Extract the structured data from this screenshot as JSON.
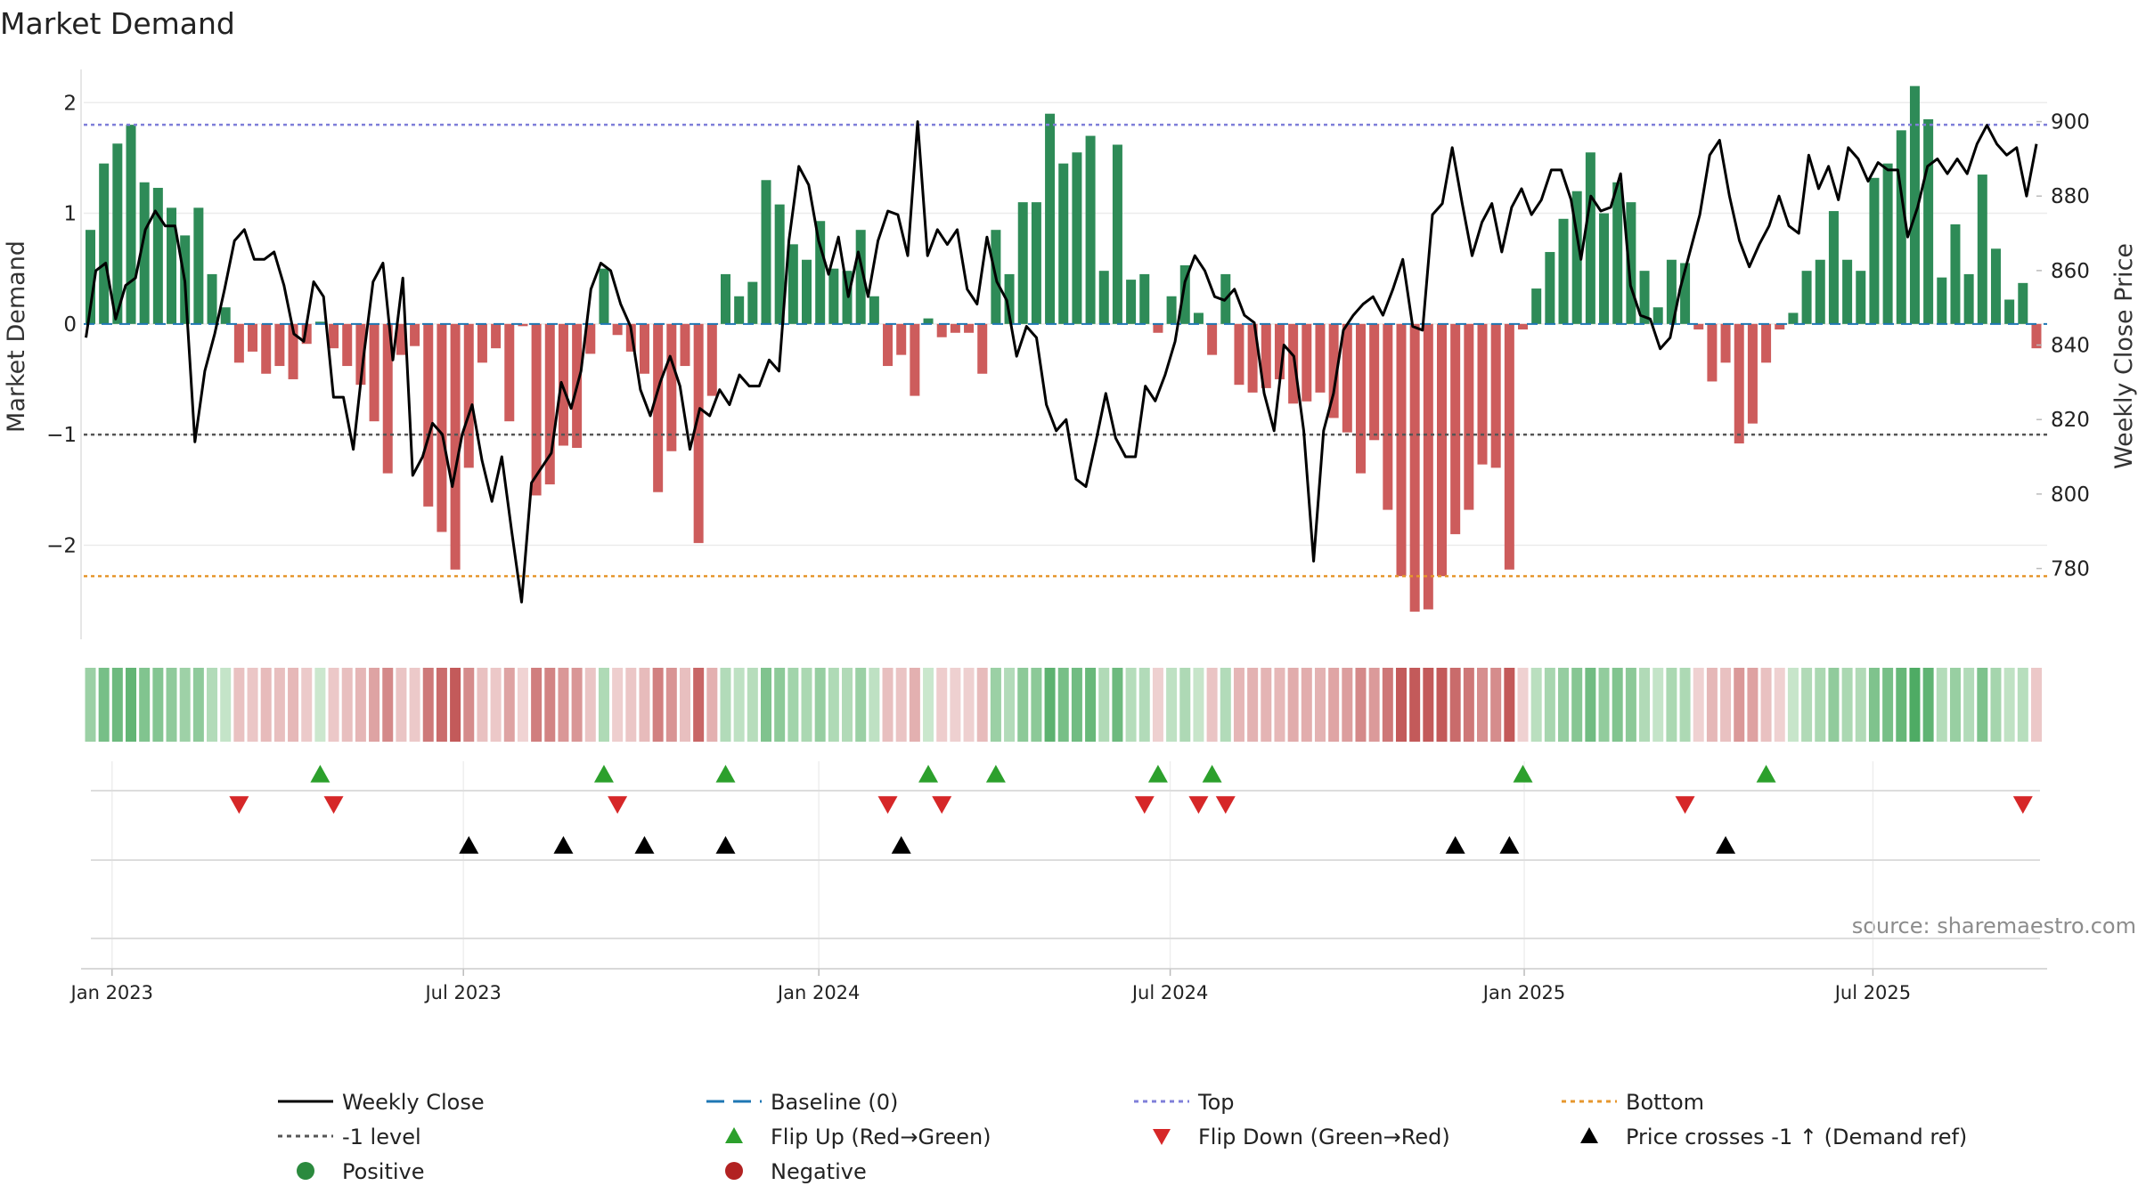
{
  "chart_data": {
    "type": "bar",
    "title": "Market Demand",
    "ylabel_left": "Market Demand",
    "ylabel_right": "Weekly Close Price",
    "ylim_left": [
      -2.85,
      2.3
    ],
    "ylim_right": [
      761,
      914
    ],
    "left_ticks": [
      "2",
      "1",
      "0",
      "−1",
      "−2"
    ],
    "left_tick_values": [
      2,
      1,
      0,
      -1,
      -2
    ],
    "right_ticks": [
      "900",
      "880",
      "860",
      "840",
      "820",
      "800",
      "780"
    ],
    "right_tick_values": [
      900,
      880,
      860,
      840,
      820,
      800,
      780
    ],
    "x_ticks": [
      "Jan 2023",
      "Jul 2023",
      "Jan 2024",
      "Jul 2024",
      "Jan 2025",
      "Jul 2025"
    ],
    "x_tick_weeks": [
      1.6,
      27.6,
      53.9,
      79.9,
      106.1,
      131.9
    ],
    "reference_lines": {
      "top": 1.8,
      "bottom": -2.28,
      "minus_one": -1,
      "baseline": 0
    },
    "market_demand": [
      0.85,
      1.45,
      1.63,
      1.8,
      1.28,
      1.23,
      1.05,
      0.8,
      1.05,
      0.45,
      0.15,
      -0.35,
      -0.25,
      -0.45,
      -0.38,
      -0.5,
      -0.18,
      0.02,
      -0.22,
      -0.38,
      -0.55,
      -0.88,
      -1.35,
      -0.28,
      -0.2,
      -1.65,
      -1.88,
      -2.22,
      -1.3,
      -0.35,
      -0.22,
      -0.88,
      -0.02,
      -1.55,
      -1.45,
      -1.1,
      -1.12,
      -0.27,
      0.5,
      -0.1,
      -0.25,
      -0.45,
      -1.52,
      -1.15,
      -0.38,
      -1.98,
      -0.65,
      0.45,
      0.25,
      0.38,
      1.3,
      1.08,
      0.72,
      0.58,
      0.93,
      0.5,
      0.48,
      0.85,
      0.25,
      -0.38,
      -0.28,
      -0.65,
      0.05,
      -0.12,
      -0.08,
      -0.08,
      -0.45,
      0.85,
      0.45,
      1.1,
      1.1,
      1.9,
      1.45,
      1.55,
      1.7,
      0.48,
      1.62,
      0.4,
      0.45,
      -0.08,
      0.25,
      0.53,
      0.1,
      -0.28,
      0.45,
      -0.55,
      -0.62,
      -0.58,
      -0.5,
      -0.72,
      -0.7,
      -0.62,
      -0.85,
      -0.98,
      -1.35,
      -1.05,
      -1.68,
      -2.28,
      -2.6,
      -2.58,
      -2.28,
      -1.9,
      -1.68,
      -1.27,
      -1.3,
      -2.22,
      -0.05,
      0.32,
      0.65,
      0.95,
      1.2,
      1.55,
      1.0,
      1.28,
      1.1,
      0.48,
      0.15,
      0.58,
      0.55,
      -0.05,
      -0.52,
      -0.35,
      -1.08,
      -0.9,
      -0.35,
      -0.05,
      0.1,
      0.48,
      0.58,
      1.02,
      0.58,
      0.48,
      1.32,
      1.45,
      1.75,
      2.15,
      1.85,
      0.42,
      0.9,
      0.45,
      1.35,
      0.68,
      0.22,
      0.37,
      -0.22
    ],
    "weekly_close": [
      842,
      860,
      862,
      847,
      856,
      858,
      871,
      876,
      872,
      872,
      857,
      814,
      833,
      843,
      855,
      868,
      871,
      863,
      863,
      865,
      856,
      843,
      841,
      857,
      853,
      826,
      826,
      812,
      836,
      857,
      862,
      836,
      858,
      805,
      810,
      819,
      816,
      802,
      816,
      824,
      809,
      798,
      810,
      790,
      771,
      803,
      807,
      811,
      830,
      823,
      833,
      855,
      862,
      860,
      851,
      845,
      828,
      821,
      830,
      837,
      829,
      812,
      823,
      821,
      828,
      824,
      832,
      829,
      829,
      836,
      833,
      868,
      888,
      883,
      868,
      859,
      869,
      853,
      865,
      853,
      868,
      876,
      875,
      864,
      900,
      864,
      871,
      867,
      871,
      855,
      851,
      869,
      857,
      852,
      837,
      845,
      842,
      824,
      817,
      820,
      804,
      802,
      814,
      827,
      815,
      810,
      810,
      829,
      825,
      832,
      841,
      857,
      864,
      860,
      853,
      852,
      855,
      848,
      846,
      827,
      817,
      840,
      837,
      817,
      782,
      817,
      827,
      844,
      848,
      851,
      853,
      848,
      855,
      863,
      845,
      844,
      875,
      878,
      893,
      878,
      864,
      873,
      878,
      865,
      877,
      882,
      875,
      879,
      887,
      887,
      879,
      863,
      880,
      876,
      877,
      886,
      856,
      848,
      847,
      839,
      842,
      855,
      865,
      875,
      891,
      895,
      880,
      868,
      861,
      867,
      872,
      880,
      872,
      870,
      891,
      882,
      888,
      879,
      893,
      890,
      884,
      889,
      887,
      887,
      869,
      877,
      888,
      890,
      886,
      890,
      886,
      894,
      899,
      894,
      891,
      893,
      880,
      894
    ],
    "flip_up_weeks": [
      17,
      38,
      47,
      62,
      67,
      79,
      83,
      106,
      124
    ],
    "flip_down_weeks": [
      11,
      18,
      39,
      59,
      63,
      78,
      82,
      84,
      118,
      143
    ],
    "price_cross_weeks": [
      28,
      35,
      41,
      47,
      60,
      101,
      105,
      121
    ],
    "watermark": "source: sharemaestro.com",
    "legend": [
      {
        "label": "Weekly Close",
        "kind": "line",
        "color": "#000000"
      },
      {
        "label": "Baseline (0)",
        "kind": "dash",
        "color": "#1f77b4"
      },
      {
        "label": "Top",
        "kind": "dot",
        "color": "#7f7fd9"
      },
      {
        "label": "Bottom",
        "kind": "dot",
        "color": "#e6972e"
      },
      {
        "label": "-1 level",
        "kind": "dot",
        "color": "#555555"
      },
      {
        "label": "Flip Up (Red→Green)",
        "kind": "tri-up",
        "color": "#2ca02c"
      },
      {
        "label": "Flip Down (Green→Red)",
        "kind": "tri-down",
        "color": "#d62728"
      },
      {
        "label": "Price crosses -1 ↑ (Demand ref)",
        "kind": "tri-up",
        "color": "#000000"
      },
      {
        "label": "Positive",
        "kind": "circle",
        "color": "#2b8a3e"
      },
      {
        "label": "Negative",
        "kind": "circle",
        "color": "#b22222"
      }
    ],
    "colors": {
      "positive_bar": "#2e8b57",
      "negative_bar": "#cd5c5c",
      "price_line": "#000000",
      "top_line": "#7f7fd9",
      "bottom_line": "#e6972e",
      "minus_one_line": "#555555",
      "baseline": "#1f77b4",
      "flip_up": "#2ca02c",
      "flip_down": "#d62728",
      "price_cross": "#000000"
    }
  }
}
